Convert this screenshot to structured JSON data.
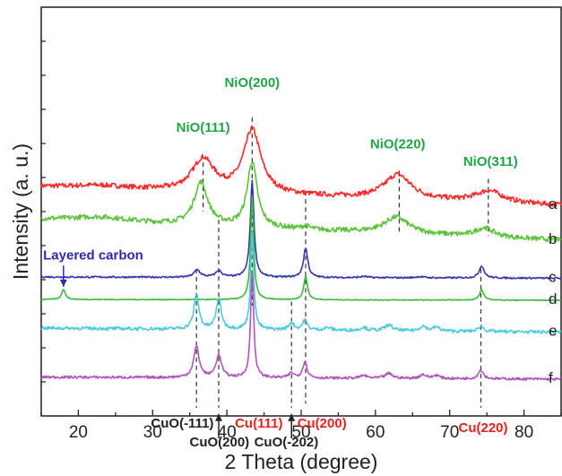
{
  "chart_data": {
    "type": "line",
    "xlabel": "2 Theta (degree)",
    "ylabel": "Intensity (a. u.)",
    "xlim": [
      15,
      85
    ],
    "x_ticks": [
      20,
      30,
      40,
      50,
      60,
      70,
      80
    ],
    "y_ticks_labeled": false,
    "grid": false,
    "colors": {
      "a": "#ff2a2a",
      "b": "#5cc43c",
      "c": "#3535b0",
      "d": "#3cbb3c",
      "e": "#4ccbd8",
      "f": "#b054b8",
      "nio_label": "#21a348",
      "cu_label": "#e8221b",
      "cuo_label": "#222222",
      "carbon_label": "#2a2aa8"
    },
    "series": [
      {
        "name": "a",
        "baseline": 0.56,
        "slope": -0.045,
        "noise": 0.012,
        "peaks": [
          [
            36.8,
            0.08,
            1.8
          ],
          [
            43.4,
            0.155,
            1.4
          ],
          [
            63.0,
            0.06,
            2.2
          ],
          [
            75.3,
            0.028,
            2.2
          ],
          [
            23.0,
            0.008,
            5.0
          ]
        ]
      },
      {
        "name": "b",
        "baseline": 0.48,
        "slope": -0.05,
        "noise": 0.012,
        "peaks": [
          [
            36.5,
            0.105,
            1.1
          ],
          [
            43.4,
            0.16,
            0.8
          ],
          [
            62.8,
            0.04,
            2.0
          ],
          [
            74.7,
            0.022,
            1.5
          ],
          [
            23.0,
            0.012,
            5.0
          ],
          [
            50.6,
            0.008,
            0.6
          ]
        ]
      },
      {
        "name": "c",
        "baseline": 0.34,
        "slope": -0.003,
        "noise": 0.004,
        "peaks": [
          [
            36.0,
            0.018,
            0.5
          ],
          [
            38.9,
            0.016,
            0.5
          ],
          [
            43.4,
            0.235,
            0.3
          ],
          [
            50.6,
            0.072,
            0.35
          ],
          [
            74.3,
            0.03,
            0.4
          ],
          [
            58.5,
            0.003,
            0.6
          ],
          [
            66.0,
            0.003,
            0.6
          ]
        ]
      },
      {
        "name": "d",
        "baseline": 0.285,
        "slope": -0.002,
        "noise": 0.002,
        "peaks": [
          [
            18.0,
            0.025,
            0.3
          ],
          [
            43.4,
            0.25,
            0.25
          ],
          [
            50.6,
            0.058,
            0.3
          ],
          [
            74.3,
            0.025,
            0.35
          ]
        ]
      },
      {
        "name": "e",
        "baseline": 0.215,
        "slope": -0.01,
        "noise": 0.008,
        "peaks": [
          [
            35.9,
            0.085,
            0.4
          ],
          [
            38.9,
            0.075,
            0.4
          ],
          [
            43.4,
            0.235,
            0.25
          ],
          [
            48.7,
            0.018,
            0.4
          ],
          [
            50.5,
            0.025,
            0.35
          ],
          [
            61.8,
            0.014,
            0.6
          ],
          [
            66.4,
            0.012,
            0.5
          ],
          [
            68.2,
            0.01,
            0.5
          ],
          [
            74.2,
            0.014,
            0.4
          ],
          [
            58.4,
            0.008,
            0.5
          ],
          [
            53.6,
            0.006,
            0.6
          ]
        ]
      },
      {
        "name": "f",
        "baseline": 0.095,
        "slope": -0.005,
        "noise": 0.006,
        "peaks": [
          [
            35.9,
            0.075,
            0.45
          ],
          [
            38.9,
            0.055,
            0.45
          ],
          [
            43.4,
            0.26,
            0.25
          ],
          [
            48.7,
            0.012,
            0.4
          ],
          [
            50.5,
            0.04,
            0.35
          ],
          [
            61.8,
            0.012,
            0.6
          ],
          [
            66.4,
            0.01,
            0.5
          ],
          [
            68.2,
            0.008,
            0.5
          ],
          [
            74.2,
            0.022,
            0.4
          ],
          [
            58.4,
            0.007,
            0.5
          ]
        ]
      }
    ],
    "reference_lines": [
      {
        "x": 36.8,
        "y_from": 0.62,
        "y_to": 0.5
      },
      {
        "x": 43.4,
        "y_from": 0.73,
        "y_to": 0.27
      },
      {
        "x": 50.6,
        "y_from": 0.55,
        "y_to": 0.03
      },
      {
        "x": 63.2,
        "y_from": 0.6,
        "y_to": 0.45
      },
      {
        "x": 75.2,
        "y_from": 0.58,
        "y_to": 0.44
      },
      {
        "x": 35.9,
        "y_from": 0.36,
        "y_to": 0.02
      },
      {
        "x": 38.9,
        "y_from": 0.48,
        "y_to": 0.02
      },
      {
        "x": 48.7,
        "y_from": 0.28,
        "y_to": 0.02
      },
      {
        "x": 74.2,
        "y_from": 0.36,
        "y_to": 0.02
      }
    ],
    "annotations": [
      {
        "text": "NiO(200)",
        "x": 43.4,
        "y": 0.805,
        "color": "nio_label"
      },
      {
        "text": "NiO(111)",
        "x": 36.8,
        "y": 0.695,
        "color": "nio_label"
      },
      {
        "text": "NiO(220)",
        "x": 63.0,
        "y": 0.655,
        "color": "nio_label"
      },
      {
        "text": "NiO(311)",
        "x": 75.5,
        "y": 0.612,
        "color": "nio_label"
      },
      {
        "text": "Layered carbon",
        "x": 22.0,
        "y": 0.383,
        "color": "carbon_label"
      },
      {
        "text": "CuO(-111)",
        "x": 34.0,
        "y": -0.028,
        "color": "cuo_label"
      },
      {
        "text": "CuO(200)",
        "x": 39.0,
        "y": -0.075,
        "color": "cuo_label"
      },
      {
        "text": "Cu(111)",
        "x": 44.3,
        "y": -0.028,
        "color": "cu_label"
      },
      {
        "text": "CuO(-202)",
        "x": 48.0,
        "y": -0.075,
        "color": "cuo_label"
      },
      {
        "text": "Cu(200)",
        "x": 52.8,
        "y": -0.028,
        "color": "cu_label"
      },
      {
        "text": "Cu(220)",
        "x": 74.5,
        "y": -0.04,
        "color": "cu_label"
      }
    ],
    "arrows": [
      {
        "x": 18.0,
        "y_from": 0.368,
        "y_to": 0.316,
        "color": "carbon_label"
      },
      {
        "x": 38.9,
        "y_from": -0.055,
        "y_to": 0.005,
        "color": "cuo_label"
      },
      {
        "x": 48.7,
        "y_from": -0.055,
        "y_to": 0.005,
        "color": "cuo_label"
      }
    ]
  }
}
